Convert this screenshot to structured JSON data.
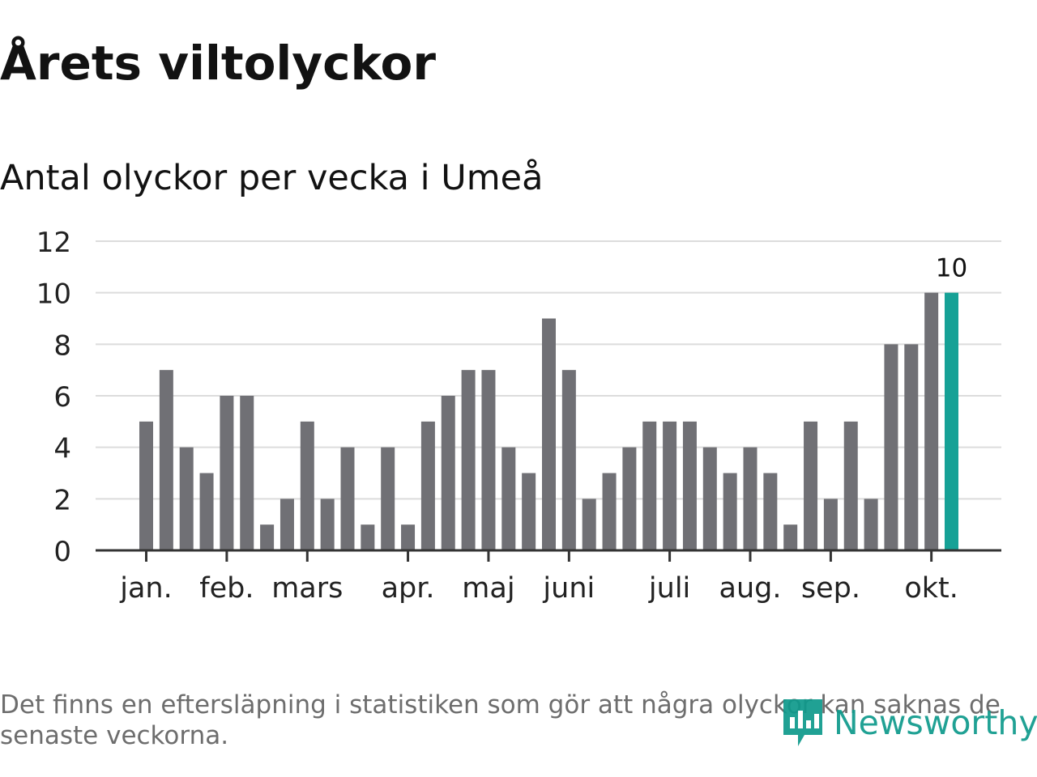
{
  "header": {
    "title": "Årets viltolyckor",
    "subtitle": "Antal olyckor per vecka i Umeå"
  },
  "footer": {
    "note": "Det finns en eftersläpning i statistiken som gör att några olyckor kan saknas de senaste veckorna.",
    "brand": "Newsworthy"
  },
  "colors": {
    "bar": "#707075",
    "highlight": "#16a196",
    "grid": "#dcdcdc",
    "axis": "#333333",
    "brand": "#0e9a8c"
  },
  "chart_data": {
    "type": "bar",
    "title": "Antal olyckor per vecka i Umeå",
    "xlabel": "",
    "ylabel": "",
    "ylim": [
      0,
      12
    ],
    "yticks": [
      0,
      2,
      4,
      6,
      8,
      10,
      12
    ],
    "grid": true,
    "legend": "none",
    "weeks": [
      1,
      2,
      3,
      4,
      5,
      6,
      7,
      8,
      9,
      10,
      11,
      12,
      13,
      14,
      15,
      16,
      17,
      18,
      19,
      20,
      21,
      22,
      23,
      24,
      25,
      26,
      27,
      28,
      29,
      30,
      31,
      32,
      33,
      34,
      35,
      36,
      37,
      38,
      39,
      40,
      41
    ],
    "values": [
      5,
      7,
      4,
      3,
      6,
      6,
      1,
      2,
      5,
      2,
      4,
      1,
      4,
      1,
      5,
      6,
      7,
      7,
      4,
      3,
      9,
      7,
      2,
      3,
      4,
      5,
      5,
      5,
      4,
      3,
      4,
      3,
      1,
      5,
      2,
      5,
      2,
      8,
      8,
      10,
      10
    ],
    "highlight_index": 40,
    "highlight_label": "10",
    "month_ticks": [
      {
        "label": "jan.",
        "week": 1
      },
      {
        "label": "feb.",
        "week": 5
      },
      {
        "label": "mars",
        "week": 9
      },
      {
        "label": "apr.",
        "week": 14
      },
      {
        "label": "maj",
        "week": 18
      },
      {
        "label": "juni",
        "week": 22
      },
      {
        "label": "juli",
        "week": 27
      },
      {
        "label": "aug.",
        "week": 31
      },
      {
        "label": "sep.",
        "week": 35
      },
      {
        "label": "okt.",
        "week": 40
      }
    ]
  }
}
